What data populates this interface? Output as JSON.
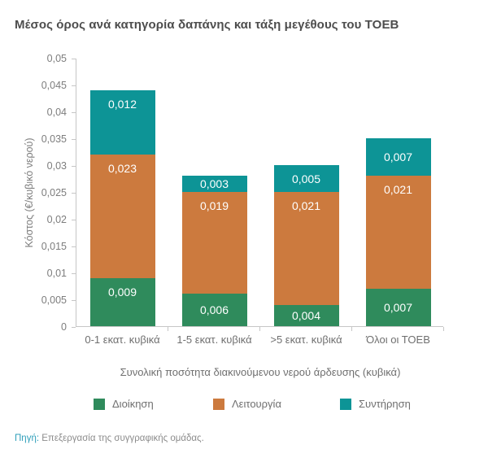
{
  "title": "Μέσος όρος ανά κατηγορία δαπάνης και τάξη μεγέθους του ΤΟΕΒ",
  "source": {
    "prefix": "Πηγή:",
    "text": "Επεξεργασία της συγγραφικής ομάδας."
  },
  "chart_data": {
    "type": "bar",
    "stacked": true,
    "title": "Μέσος όρος ανά κατηγορία δαπάνης και τάξη μεγέθους του ΤΟΕΒ",
    "categories": [
      "0-1 εκατ. κυβικά",
      "1-5 εκατ. κυβικά",
      ">5 εκατ. κυβικά",
      "Όλοι οι ΤΟΕΒ"
    ],
    "xlabel": "Συνολική ποσότητα διακινούμενου νερού άρδευσης (κυβικά)",
    "ylabel": "Κόστος (€/κυβικό νερού)",
    "ylim": [
      0,
      0.05
    ],
    "ytick_step": 0.005,
    "ytick_labels": [
      "0",
      "0,005",
      "0,01",
      "0,015",
      "0,02",
      "0,025",
      "0,03",
      "0,035",
      "0,04",
      "0,045",
      "0,05"
    ],
    "grid": false,
    "legend_position": "bottom",
    "series": [
      {
        "name": "Διοίκηση",
        "color": "#2f8b5c",
        "values": [
          0.009,
          0.006,
          0.004,
          0.007
        ],
        "labels": [
          "0,009",
          "0,006",
          "0,004",
          "0,007"
        ]
      },
      {
        "name": "Λειτουργία",
        "color": "#cc7a3e",
        "values": [
          0.023,
          0.019,
          0.021,
          0.021
        ],
        "labels": [
          "0,023",
          "0,019",
          "0,021",
          "0,021"
        ]
      },
      {
        "name": "Συντήρηση",
        "color": "#0d9496",
        "values": [
          0.012,
          0.003,
          0.005,
          0.007
        ],
        "labels": [
          "0,012",
          "0,003",
          "0,005",
          "0,007"
        ]
      }
    ],
    "bar_totals": [
      0.044,
      0.028,
      0.03,
      0.035
    ]
  }
}
